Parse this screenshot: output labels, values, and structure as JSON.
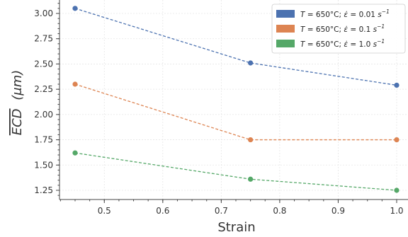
{
  "chart_data": {
    "type": "line",
    "xlabel": "Strain",
    "ylabel": "ECD (μm)",
    "ylabel_overline": "ECD",
    "ylabel_unit": "(μm)",
    "xlim": [
      0.42,
      1.02
    ],
    "ylim": [
      1.18,
      3.12
    ],
    "xticks": [
      0.5,
      0.6,
      0.7,
      0.8,
      0.9,
      1.0
    ],
    "xtick_labels": [
      "0.5",
      "0.6",
      "0.7",
      "0.8",
      "0.9",
      "1.0"
    ],
    "yticks": [
      1.25,
      1.5,
      1.75,
      2.0,
      2.25,
      2.5,
      2.75,
      3.0
    ],
    "ytick_labels": [
      "1.25",
      "1.50",
      "1.75",
      "2.00",
      "2.25",
      "2.50",
      "2.75",
      "3.00"
    ],
    "grid": true,
    "legend_position": "top-right",
    "series": [
      {
        "name": "T = 650°C; ε̇ = 0.01 s⁻¹",
        "legend_parts": {
          "t": "T",
          "temp": " = 650°C; ",
          "rate_sym": "ε̇",
          "rate": " = 0.01 ",
          "unit": "s",
          "exp": "−1"
        },
        "color": "#4c72b0",
        "x": [
          0.45,
          0.75,
          1.0
        ],
        "y": [
          3.05,
          2.51,
          2.29
        ]
      },
      {
        "name": "T = 650°C; ε̇ = 0.1 s⁻¹",
        "legend_parts": {
          "t": "T",
          "temp": " = 650°C; ",
          "rate_sym": "ε̇",
          "rate": " = 0.1 ",
          "unit": "s",
          "exp": "−1"
        },
        "color": "#dd8452",
        "x": [
          0.45,
          0.75,
          1.0
        ],
        "y": [
          2.3,
          1.75,
          1.75
        ]
      },
      {
        "name": "T = 650°C; ε̇ = 1.0 s⁻¹",
        "legend_parts": {
          "t": "T",
          "temp": " = 650°C; ",
          "rate_sym": "ε̇",
          "rate": " = 1.0 ",
          "unit": "s",
          "exp": "−1"
        },
        "color": "#55a868",
        "x": [
          0.45,
          0.75,
          1.0
        ],
        "y": [
          1.62,
          1.36,
          1.25
        ]
      }
    ]
  }
}
